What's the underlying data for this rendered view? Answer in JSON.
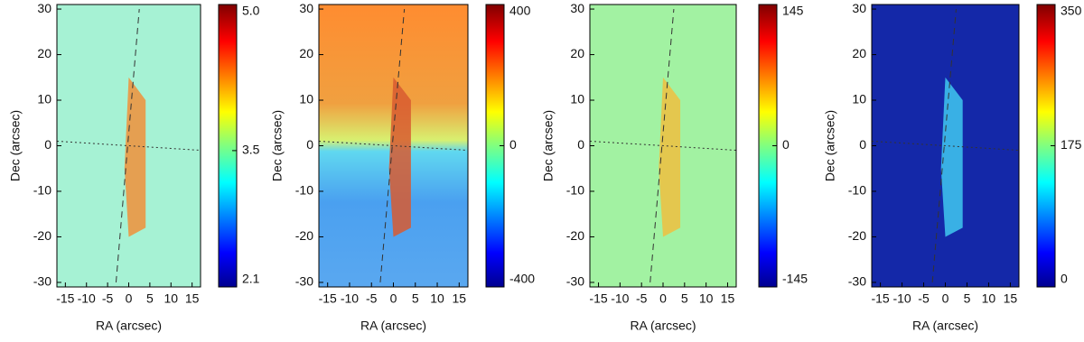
{
  "chart_data": [
    {
      "type": "heatmap",
      "xlabel": "RA (arcsec)",
      "ylabel": "Dec (arcsec)",
      "xlim": [
        -17,
        17
      ],
      "ylim": [
        -31,
        31
      ],
      "xticks": [
        -15,
        -10,
        -5,
        0,
        5,
        10,
        15
      ],
      "yticks": [
        -30,
        -20,
        -10,
        0,
        10,
        20,
        30
      ],
      "colormap": "jet",
      "clim": [
        2.1,
        5.0
      ],
      "cticks": [
        2.1,
        3.5,
        {
          "value": 5,
          "label": "5.0"
        }
      ]
    },
    {
      "type": "heatmap",
      "xlabel": "RA (arcsec)",
      "ylabel": "Dec (arcsec)",
      "xlim": [
        -17,
        17
      ],
      "ylim": [
        -31,
        31
      ],
      "xticks": [
        -15,
        -10,
        -5,
        0,
        5,
        10,
        15
      ],
      "yticks": [
        -30,
        -20,
        -10,
        0,
        10,
        20,
        30
      ],
      "colormap": "jet",
      "clim": [
        -400,
        400
      ],
      "cticks": [
        -400,
        0,
        400
      ]
    },
    {
      "type": "heatmap",
      "xlabel": "RA (arcsec)",
      "ylabel": "Dec (arcsec)",
      "xlim": [
        -17,
        17
      ],
      "ylim": [
        -31,
        31
      ],
      "xticks": [
        -15,
        -10,
        -5,
        0,
        5,
        10,
        15
      ],
      "yticks": [
        -30,
        -20,
        -10,
        0,
        10,
        20,
        30
      ],
      "colormap": "jet",
      "clim": [
        -145,
        145
      ],
      "cticks": [
        -145,
        0,
        145
      ]
    },
    {
      "type": "heatmap",
      "xlabel": "RA (arcsec)",
      "ylabel": "Dec (arcsec)",
      "xlim": [
        -17,
        17
      ],
      "ylim": [
        -31,
        31
      ],
      "xticks": [
        -15,
        -10,
        -5,
        0,
        5,
        10,
        15
      ],
      "yticks": [
        -30,
        -20,
        -10,
        0,
        10,
        20,
        30
      ],
      "colormap": "jet",
      "clim": [
        0,
        350
      ],
      "cticks": [
        0,
        175,
        350
      ]
    }
  ]
}
